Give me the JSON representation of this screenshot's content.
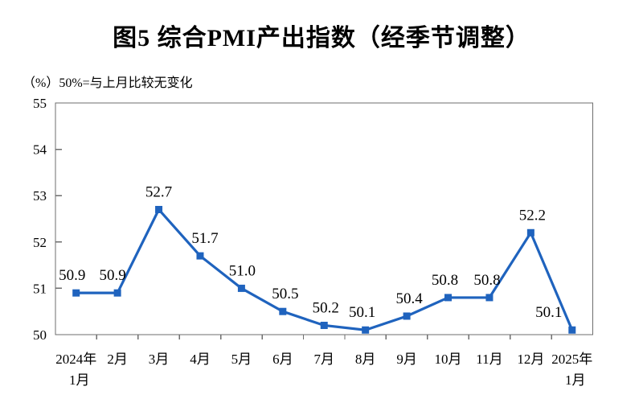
{
  "chart_data": {
    "type": "line",
    "title": "图5  综合PMI产出指数（经季节调整）",
    "subtitle_note": "（%）50%=与上月比较无变化",
    "categories": [
      "2024年|1月",
      "2月",
      "3月",
      "4月",
      "5月",
      "6月",
      "7月",
      "8月",
      "9月",
      "10月",
      "11月",
      "12月",
      "2025年|1月"
    ],
    "values": [
      50.9,
      50.9,
      52.7,
      51.7,
      51.0,
      50.5,
      50.2,
      50.1,
      50.4,
      50.8,
      50.8,
      52.2,
      50.1
    ],
    "value_labels": [
      "50.9",
      "50.9",
      "52.7",
      "51.7",
      "51.0",
      "50.5",
      "50.2",
      "50.1",
      "50.4",
      "50.8",
      "50.8",
      "52.2",
      "50.1"
    ],
    "xlabel": "",
    "ylabel": "",
    "ylim": [
      50,
      55
    ],
    "ytick_step": 1,
    "yticks": [
      50,
      51,
      52,
      53,
      54,
      55
    ],
    "grid": false,
    "legend": "none",
    "marker": "square",
    "line_color": "#1F63BE",
    "axis_color": "#6e6e6e",
    "text_color": "#000000",
    "label_dx": [
      -5,
      -6,
      0,
      6,
      1,
      3,
      2,
      -4,
      3,
      -4,
      -3,
      2,
      -29
    ],
    "label_dy": -16
  }
}
